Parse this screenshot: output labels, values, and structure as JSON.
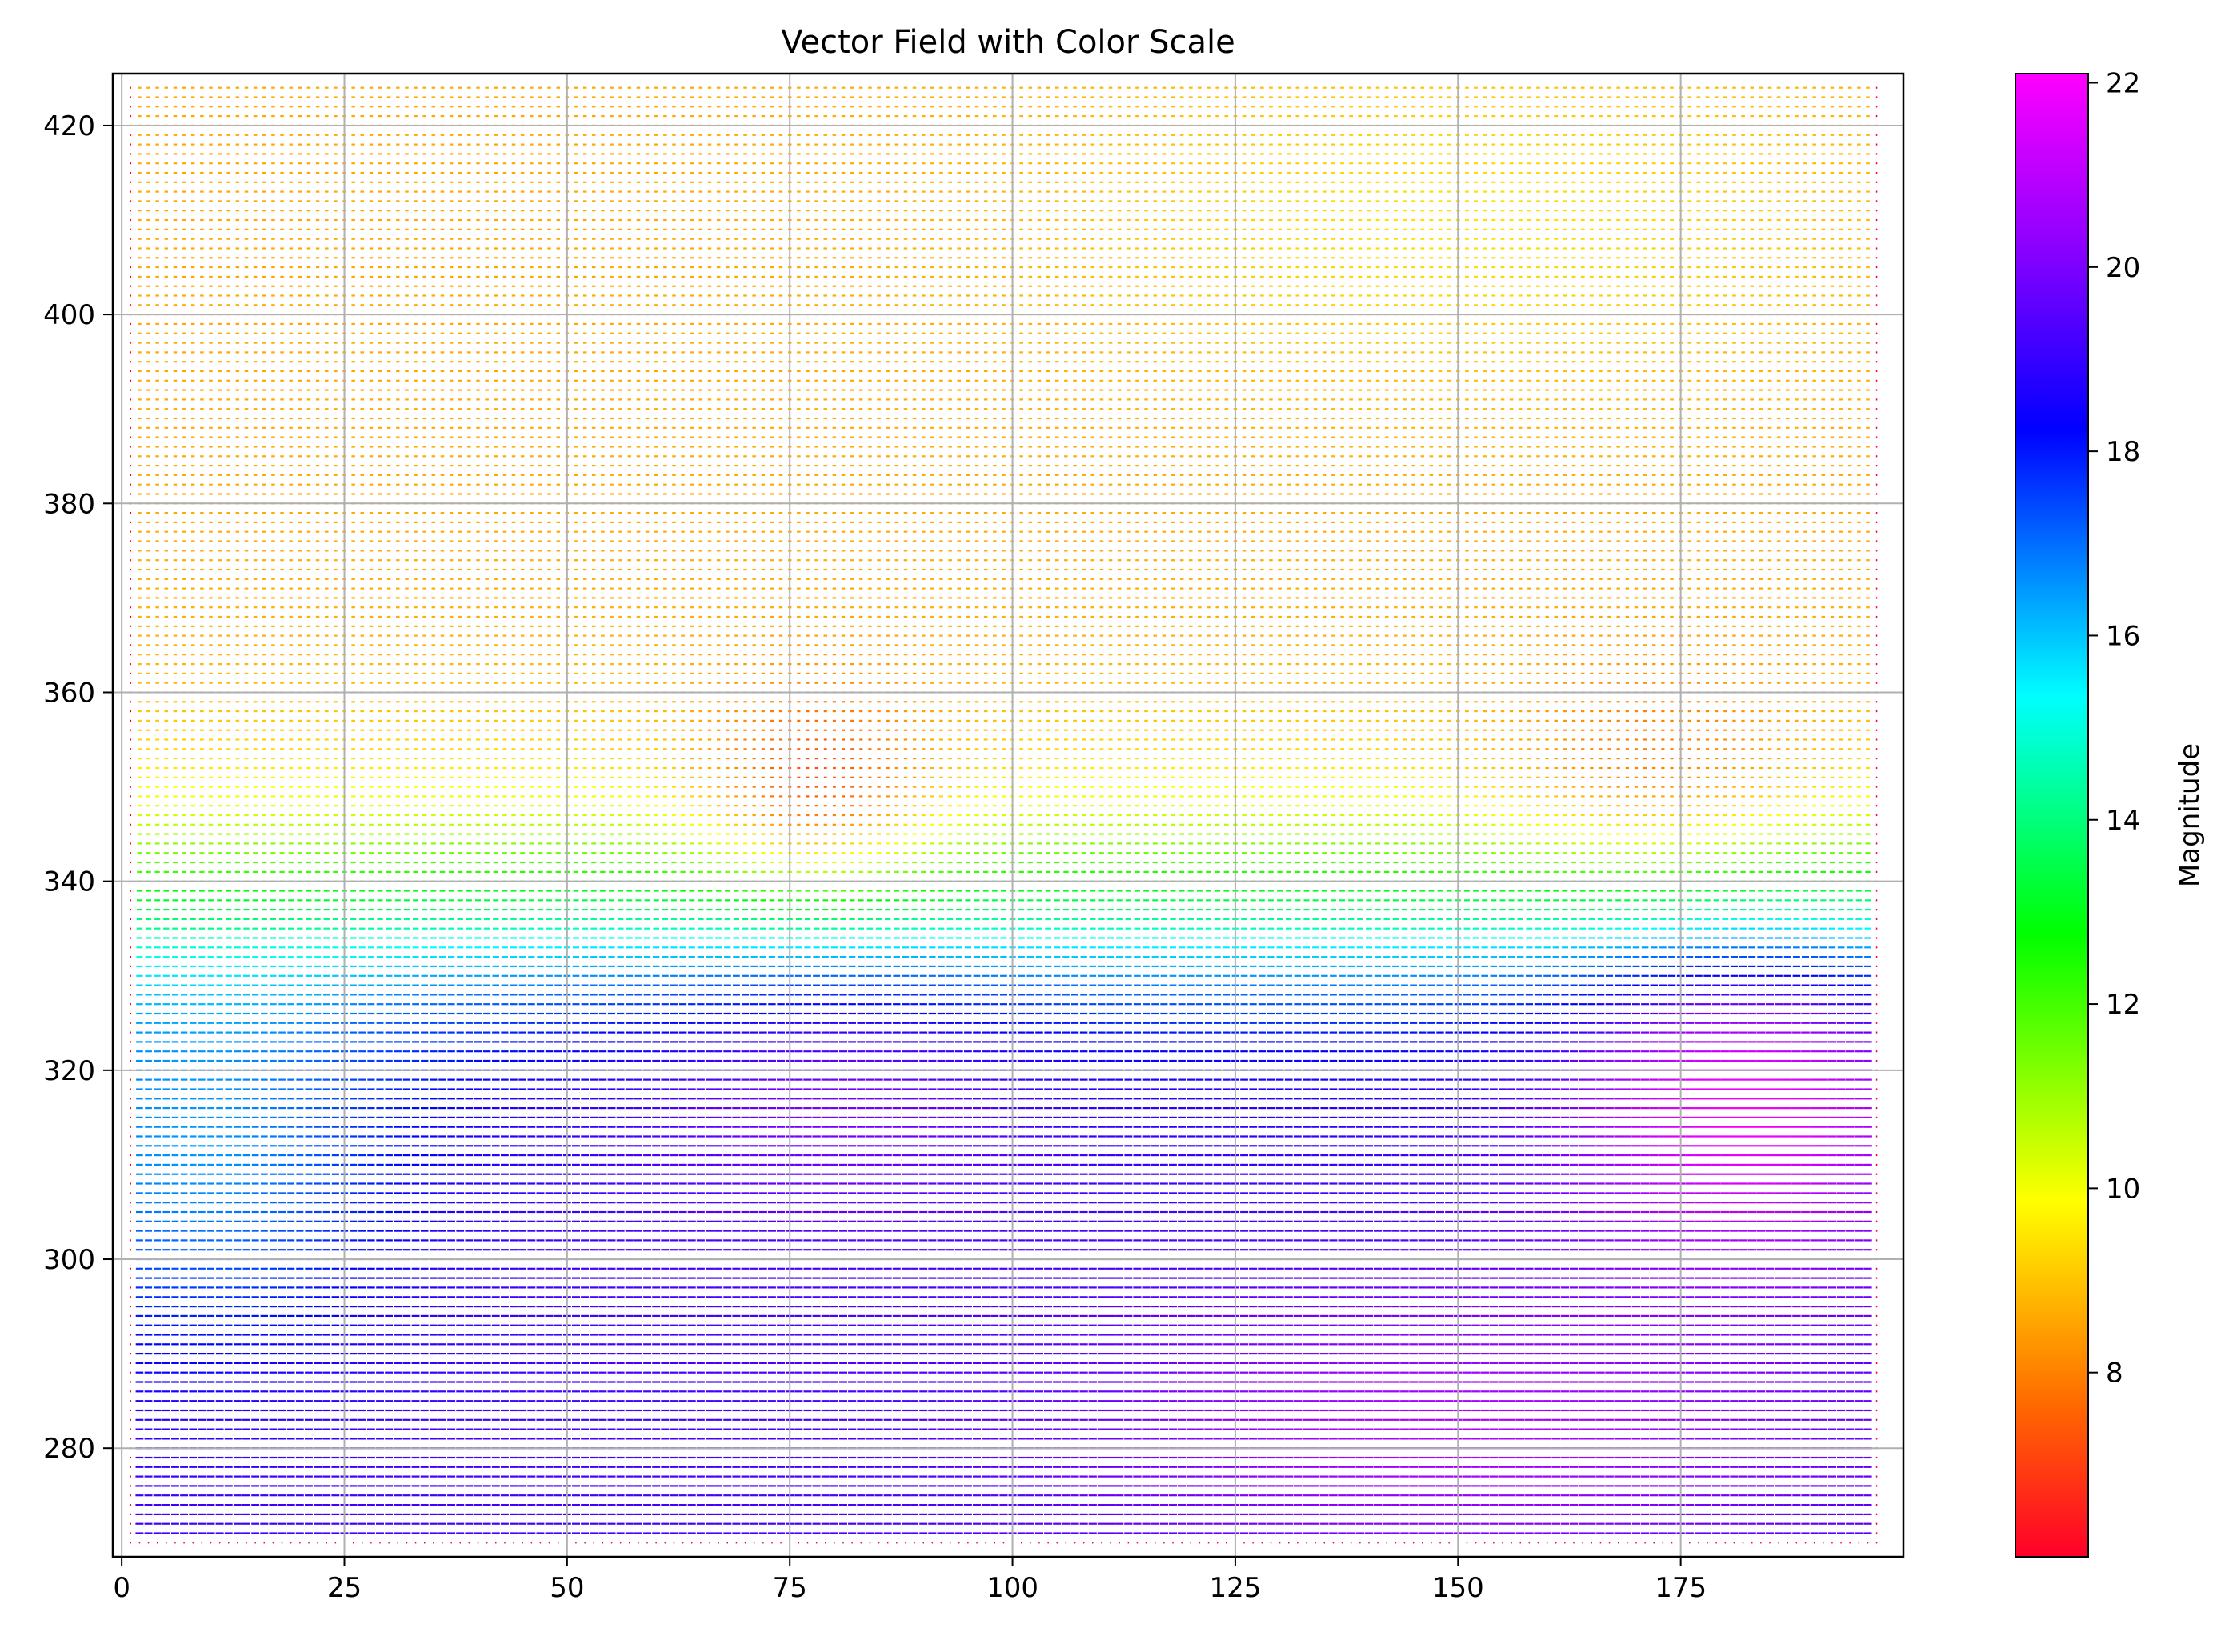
{
  "chart_data": {
    "type": "quiver",
    "title": "Vector Field with Color Scale",
    "xlabel": "",
    "ylabel": "",
    "xlim": [
      -1,
      200
    ],
    "ylim": [
      268.5,
      425.5
    ],
    "x_ticks": [
      0,
      25,
      50,
      75,
      100,
      125,
      150,
      175
    ],
    "y_ticks": [
      280,
      300,
      320,
      340,
      360,
      380,
      400,
      420
    ],
    "grid": true,
    "colormap": "gist_rainbow",
    "colorbar": {
      "label": "Magnitude",
      "range": [
        6.0,
        22.1
      ],
      "ticks": [
        8,
        10,
        12,
        14,
        16,
        18,
        20,
        22
      ],
      "color_stops": [
        "#ff0029",
        "#ff6600",
        "#ffff00",
        "#00ff00",
        "#00ffff",
        "#0000ff",
        "#8800ff",
        "#ff00ff"
      ]
    },
    "field_grid": {
      "x_range": [
        1,
        197
      ],
      "y_range": [
        270,
        424
      ]
    },
    "magnitude_regions": [
      {
        "description_y_range": [
          270,
          300
        ],
        "magnitude_approx": 19
      },
      {
        "description_y_range": [
          300,
          320
        ],
        "magnitude_approx": 17
      },
      {
        "description_y_range": [
          320,
          340
        ],
        "magnitude_approx": 14
      },
      {
        "description_y_range": [
          340,
          355
        ],
        "magnitude_approx": 11
      },
      {
        "description_y_range": [
          355,
          424
        ],
        "magnitude_approx": 8.5
      }
    ]
  }
}
